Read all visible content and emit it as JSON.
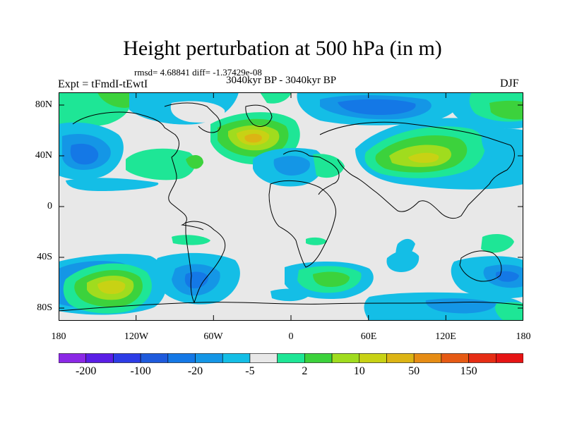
{
  "title": "Height perturbation at 500 hPa (in m)",
  "stats": {
    "text": "rmsd= 4.68841 diff= -1.37429e-08"
  },
  "experiment": "Expt = tFmdI-tEwtI",
  "period": "3040kyr BP - 3040kyr BP",
  "season": "DJF",
  "axes": {
    "y_ticks": [
      "80N",
      "40N",
      "0",
      "40S",
      "80S"
    ],
    "x_ticks": [
      "180",
      "120W",
      "60W",
      "0",
      "60E",
      "120E",
      "180"
    ]
  },
  "colorbar": {
    "labels": [
      "-200",
      "-100",
      "-20",
      "-5",
      "2",
      "10",
      "50",
      "150"
    ],
    "colors": [
      "#8b28e6",
      "#5a1ee6",
      "#2d3ce6",
      "#1e5adc",
      "#1478e6",
      "#1496e6",
      "#14bee6",
      "#e8e8e8",
      "#1ee696",
      "#3cd23c",
      "#a0dc1e",
      "#c8d214",
      "#dcb414",
      "#e68c14",
      "#e65a14",
      "#e62d14",
      "#e61414"
    ]
  },
  "colors": {
    "background_field": "#e8e8e8",
    "coast": "#000000"
  },
  "chart_data": {
    "type": "contour_map",
    "projection": "cylindrical equidistant",
    "lon_range": [
      -180,
      180
    ],
    "lat_range": [
      -90,
      90
    ],
    "variable": "500 hPa geopotential height perturbation (m)",
    "anomalies": [
      {
        "region": "North Atlantic",
        "lon": -35,
        "lat": 52,
        "peak": 50
      },
      {
        "region": "Central Asia",
        "lon": 80,
        "lat": 38,
        "peak": 50
      },
      {
        "region": "South Pacific",
        "lon": -140,
        "lat": -52,
        "peak": 50
      },
      {
        "region": "South Atlantic/Indian",
        "lon": 40,
        "lat": -45,
        "peak": 10
      },
      {
        "region": "North Pacific",
        "lon": -165,
        "lat": 40,
        "peak": -20
      },
      {
        "region": "Siberia/Arctic",
        "lon": 60,
        "lat": 72,
        "peak": -20
      },
      {
        "region": "South America",
        "lon": -70,
        "lat": -48,
        "peak": -20
      },
      {
        "region": "South of Australia",
        "lon": 160,
        "lat": -50,
        "peak": -20
      },
      {
        "region": "Antarctic coast",
        "lon": 90,
        "lat": -70,
        "peak": -5
      }
    ]
  }
}
